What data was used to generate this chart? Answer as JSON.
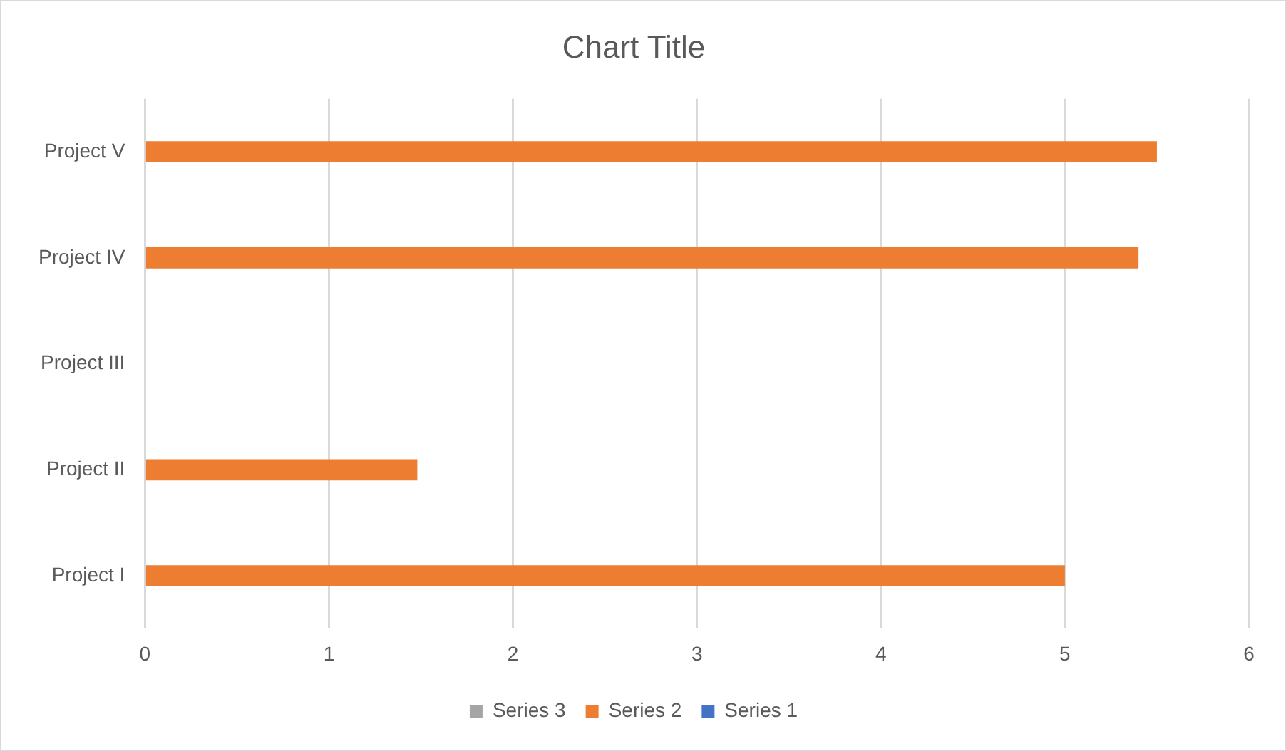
{
  "chart_data": {
    "type": "bar",
    "orientation": "horizontal",
    "title": "Chart Title",
    "categories": [
      "Project V",
      "Project IV",
      "Project III",
      "Project II",
      "Project I"
    ],
    "series": [
      {
        "name": "Series 3",
        "color": "#a5a5a5",
        "values": [
          null,
          null,
          null,
          null,
          null
        ]
      },
      {
        "name": "Series 2",
        "color": "#ed7d31",
        "values": [
          5.5,
          5.4,
          null,
          1.48,
          5.0
        ]
      },
      {
        "name": "Series 1",
        "color": "#4472c4",
        "values": [
          null,
          null,
          null,
          null,
          null
        ]
      }
    ],
    "xlim": [
      0,
      6
    ],
    "xticks": [
      0,
      1,
      2,
      3,
      4,
      5,
      6
    ],
    "grid": "x",
    "legend": "bottom"
  }
}
